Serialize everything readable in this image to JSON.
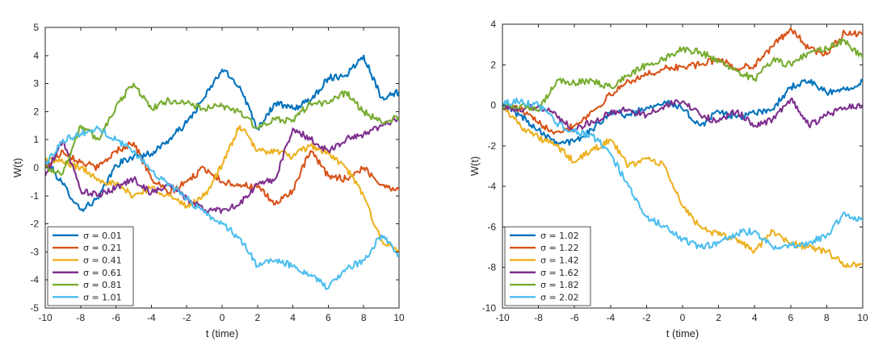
{
  "chart_data": [
    {
      "type": "line",
      "xlabel": "t (time)",
      "ylabel": "W(t)",
      "xlim": [
        -10,
        10
      ],
      "ylim": [
        -5,
        5
      ],
      "xticks": [
        -10,
        -8,
        -6,
        -4,
        -2,
        0,
        2,
        4,
        6,
        8,
        10
      ],
      "yticks": [
        -5,
        -4,
        -3,
        -2,
        -1,
        0,
        1,
        2,
        3,
        4,
        5
      ],
      "grid": false,
      "legend_position": "bottom-left",
      "x": [
        -10,
        -9,
        -8,
        -7,
        -6,
        -5,
        -4,
        -3,
        -2,
        -1,
        0,
        1,
        2,
        3,
        4,
        5,
        6,
        7,
        8,
        9,
        10
      ],
      "series": [
        {
          "name": "σ = 0.01",
          "color": "#0072BD",
          "values": [
            0.3,
            -0.6,
            -1.5,
            -1.1,
            0.1,
            0.4,
            0.5,
            1.0,
            1.6,
            2.5,
            3.5,
            2.9,
            1.4,
            2.3,
            2.1,
            2.4,
            3.2,
            3.3,
            4.0,
            2.5,
            2.7
          ]
        },
        {
          "name": "σ = 0.21",
          "color": "#D95319",
          "values": [
            0.0,
            0.6,
            0.2,
            0.0,
            0.6,
            0.9,
            -0.4,
            -0.9,
            -0.5,
            0.0,
            -0.5,
            -0.6,
            -0.7,
            -1.3,
            -0.8,
            0.6,
            -0.3,
            -0.4,
            0.0,
            -0.6,
            -0.8
          ]
        },
        {
          "name": "σ = 0.41",
          "color": "#EDB120",
          "values": [
            0.3,
            0.2,
            0.0,
            -0.4,
            -0.6,
            -1.0,
            -0.7,
            -1.0,
            -1.4,
            -1.0,
            0.1,
            1.5,
            0.6,
            0.6,
            0.4,
            0.8,
            0.5,
            0.0,
            -1.0,
            -2.6,
            -3.0
          ]
        },
        {
          "name": "σ = 0.61",
          "color": "#7E2F8E",
          "values": [
            -0.3,
            1.0,
            -0.8,
            -1.0,
            -0.7,
            -0.4,
            -0.9,
            -0.6,
            -1.1,
            -1.5,
            -1.5,
            -1.3,
            -0.6,
            -0.4,
            1.4,
            1.0,
            0.6,
            1.0,
            1.2,
            1.5,
            1.8
          ]
        },
        {
          "name": "σ = 0.81",
          "color": "#77AC30",
          "values": [
            0.0,
            -0.2,
            1.5,
            1.0,
            2.2,
            3.0,
            2.1,
            2.4,
            2.3,
            2.1,
            2.2,
            2.0,
            1.4,
            1.7,
            1.7,
            2.3,
            2.3,
            2.7,
            2.0,
            1.6,
            1.8
          ]
        },
        {
          "name": "σ = 1.01",
          "color": "#4DBEEE",
          "values": [
            0.1,
            1.0,
            1.2,
            1.4,
            1.0,
            0.6,
            -0.1,
            -0.6,
            -1.1,
            -1.6,
            -2.0,
            -2.5,
            -3.5,
            -3.3,
            -3.5,
            -3.8,
            -4.3,
            -3.6,
            -3.3,
            -2.4,
            -3.1
          ]
        }
      ]
    },
    {
      "type": "line",
      "xlabel": "t (time)",
      "ylabel": "W(t)",
      "xlim": [
        -10,
        10
      ],
      "ylim": [
        -10,
        4
      ],
      "xticks": [
        -10,
        -8,
        -6,
        -4,
        -2,
        0,
        2,
        4,
        6,
        8,
        10
      ],
      "yticks": [
        -10,
        -8,
        -6,
        -4,
        -2,
        0,
        2,
        4
      ],
      "grid": false,
      "legend_position": "bottom-left",
      "x": [
        -10,
        -9,
        -8,
        -7,
        -6,
        -5,
        -4,
        -3,
        -2,
        -1,
        0,
        1,
        2,
        3,
        4,
        5,
        6,
        7,
        8,
        9,
        10
      ],
      "series": [
        {
          "name": "σ = 1.02",
          "color": "#0072BD",
          "values": [
            0.0,
            -0.5,
            -1.2,
            -1.8,
            -1.8,
            -1.2,
            -0.3,
            -0.5,
            -0.1,
            0.2,
            -0.2,
            -1.0,
            -0.3,
            -0.6,
            -0.4,
            -0.2,
            0.9,
            1.2,
            0.6,
            0.8,
            1.2
          ]
        },
        {
          "name": "σ = 1.22",
          "color": "#D95319",
          "values": [
            0.1,
            -0.2,
            -0.9,
            -1.3,
            -1.0,
            -0.3,
            0.5,
            1.2,
            1.5,
            1.8,
            1.9,
            2.0,
            2.3,
            1.8,
            2.0,
            2.9,
            3.8,
            2.8,
            2.5,
            3.6,
            3.5
          ]
        },
        {
          "name": "σ = 1.42",
          "color": "#EDB120",
          "values": [
            0.0,
            -1.0,
            -1.6,
            -2.0,
            -2.8,
            -2.2,
            -1.7,
            -3.0,
            -2.6,
            -3.0,
            -5.0,
            -6.0,
            -6.4,
            -6.6,
            -7.2,
            -6.2,
            -6.8,
            -7.0,
            -7.2,
            -7.9,
            -7.8
          ]
        },
        {
          "name": "σ = 1.62",
          "color": "#7E2F8E",
          "values": [
            0.0,
            -0.3,
            0.0,
            -0.5,
            -1.2,
            -0.8,
            -0.4,
            -0.2,
            -0.5,
            0.0,
            0.2,
            -0.5,
            -0.8,
            -0.3,
            -1.0,
            -0.7,
            0.3,
            -1.0,
            -0.5,
            -0.1,
            0.0
          ]
        },
        {
          "name": "σ = 1.82",
          "color": "#77AC30",
          "values": [
            0.0,
            0.0,
            -0.3,
            1.2,
            1.1,
            1.2,
            0.9,
            1.5,
            2.0,
            2.3,
            2.8,
            2.6,
            2.2,
            1.7,
            1.3,
            2.2,
            2.0,
            2.6,
            2.8,
            3.2,
            2.3
          ]
        },
        {
          "name": "σ = 2.02",
          "color": "#4DBEEE",
          "values": [
            0.1,
            0.2,
            0.0,
            -0.9,
            -1.3,
            -1.5,
            -2.4,
            -4.0,
            -5.5,
            -6.0,
            -6.6,
            -7.0,
            -6.8,
            -6.3,
            -6.2,
            -7.0,
            -6.9,
            -6.8,
            -6.4,
            -5.3,
            -5.7
          ]
        }
      ]
    }
  ]
}
